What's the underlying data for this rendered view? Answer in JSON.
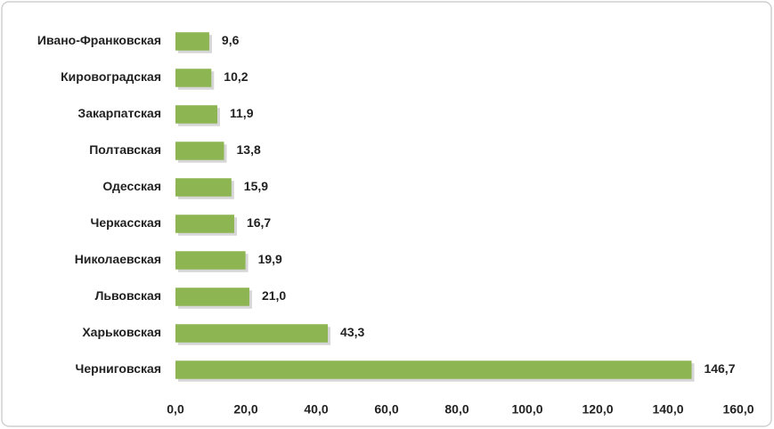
{
  "chart_data": {
    "type": "bar",
    "orientation": "horizontal",
    "categories": [
      "Ивано-Франковская",
      "Кировоградская",
      "Закарпатская",
      "Полтавская",
      "Одесская",
      "Черкасская",
      "Николаевская",
      "Львовская",
      "Харьковская",
      "Черниговская"
    ],
    "values": [
      9.6,
      10.2,
      11.9,
      13.8,
      15.9,
      16.7,
      19.9,
      21.0,
      43.3,
      146.7
    ],
    "value_labels": [
      "9,6",
      "10,2",
      "11,9",
      "13,8",
      "15,9",
      "16,7",
      "19,9",
      "21,0",
      "43,3",
      "146,7"
    ],
    "color": "#8db552",
    "xlim": [
      0,
      160
    ],
    "xticks": [
      {
        "value": 0,
        "label": "0,0"
      },
      {
        "value": 20,
        "label": "20,0"
      },
      {
        "value": 40,
        "label": "40,0"
      },
      {
        "value": 60,
        "label": "60,0"
      },
      {
        "value": 80,
        "label": "80,0"
      },
      {
        "value": 100,
        "label": "100,0"
      },
      {
        "value": 120,
        "label": "120,0"
      },
      {
        "value": 140,
        "label": "140,0"
      },
      {
        "value": 160,
        "label": "160,0"
      }
    ],
    "grid": false
  }
}
